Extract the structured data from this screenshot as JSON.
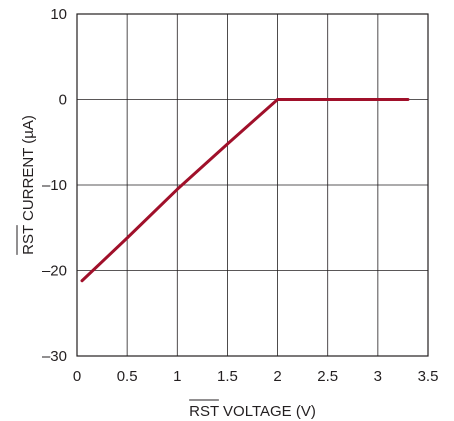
{
  "chart_data": {
    "type": "line",
    "title": "",
    "xlabel": {
      "overlined": "RST",
      "text": " VOLTAGE (V)"
    },
    "ylabel": {
      "overlined": "RST",
      "text": " CURRENT (µA)"
    },
    "xlim": [
      0,
      3.5
    ],
    "ylim": [
      -30,
      10
    ],
    "x_ticks": [
      0,
      0.5,
      1,
      1.5,
      2,
      2.5,
      3,
      3.5
    ],
    "x_tick_labels": [
      "0",
      "0.5",
      "1",
      "1.5",
      "2",
      "2.5",
      "3",
      "3.5"
    ],
    "y_ticks": [
      10,
      0,
      -10,
      -20,
      -30
    ],
    "y_tick_labels": [
      "10",
      "0",
      "–10",
      "–20",
      "–30"
    ],
    "grid": true,
    "legend": "none",
    "line_color": "#a0102a",
    "series": [
      {
        "x": [
          0.05,
          0.5,
          1.0,
          1.5,
          2.0,
          2.5,
          3.0,
          3.3
        ],
        "y": [
          -21.2,
          -16.2,
          -10.5,
          -5.2,
          0.0,
          0.0,
          0.0,
          0.0
        ]
      }
    ]
  }
}
